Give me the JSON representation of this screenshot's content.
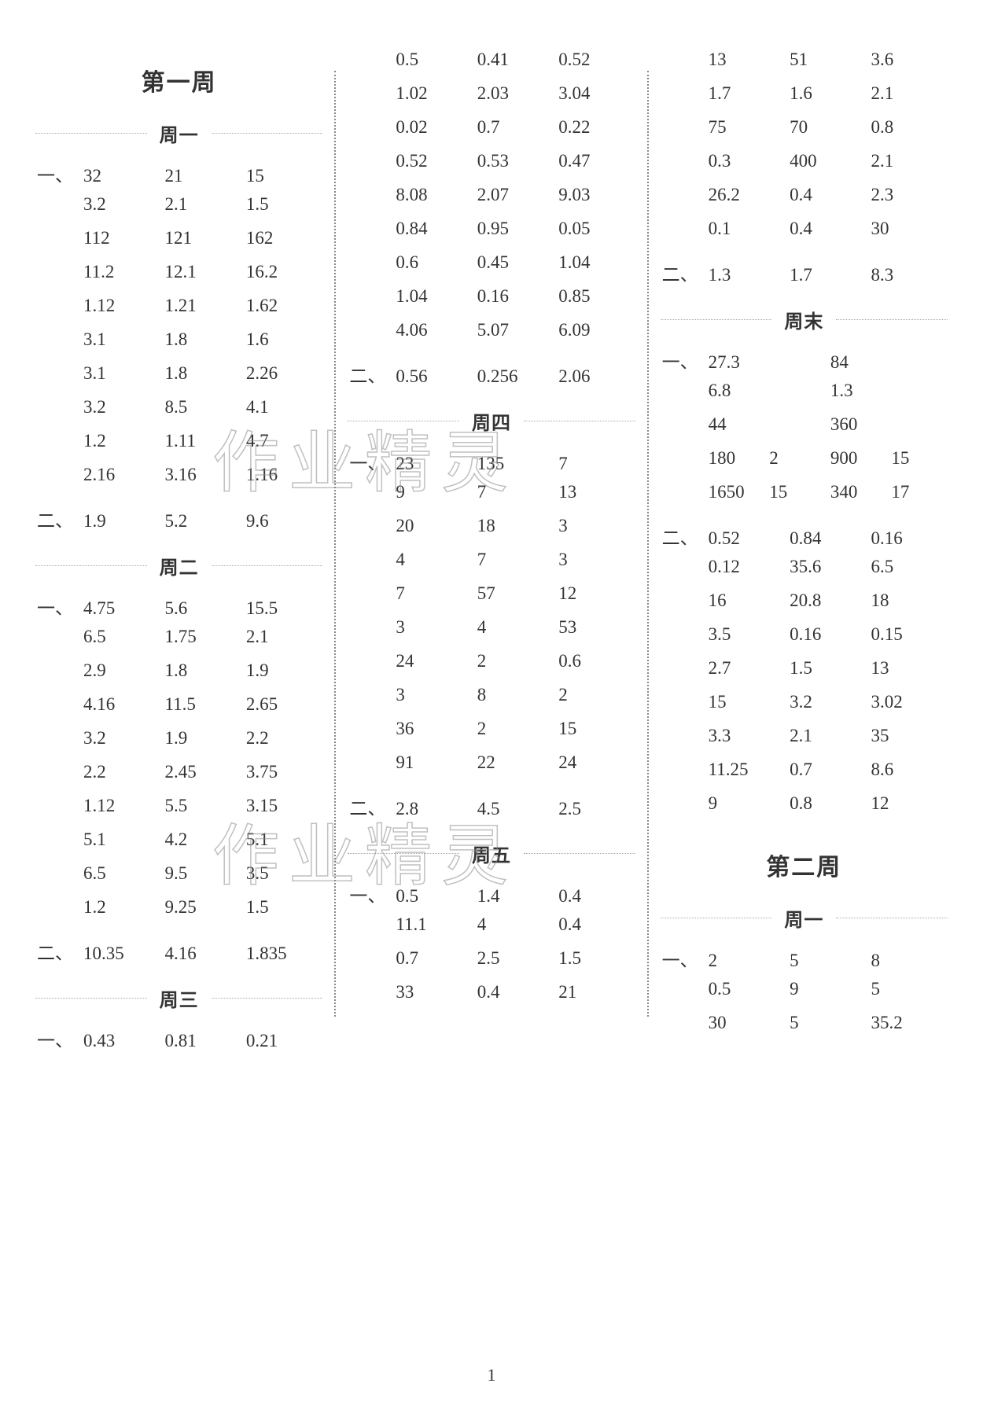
{
  "page_number": "1",
  "watermark_text": "作业精灵",
  "columns": [
    {
      "blocks": [
        {
          "type": "week",
          "text": "第一周"
        },
        {
          "type": "day",
          "text": "周一"
        },
        {
          "type": "section",
          "rows": [
            {
              "lead": "一、",
              "cells": [
                "32",
                "21",
                "15"
              ]
            },
            {
              "lead": "",
              "cells": [
                "3.2",
                "2.1",
                "1.5"
              ]
            },
            {
              "lead": "",
              "cells": [
                "112",
                "121",
                "162"
              ]
            },
            {
              "lead": "",
              "cells": [
                "11.2",
                "12.1",
                "16.2"
              ]
            },
            {
              "lead": "",
              "cells": [
                "1.12",
                "1.21",
                "1.62"
              ]
            },
            {
              "lead": "",
              "cells": [
                "3.1",
                "1.8",
                "1.6"
              ]
            },
            {
              "lead": "",
              "cells": [
                "3.1",
                "1.8",
                "2.26"
              ]
            },
            {
              "lead": "",
              "cells": [
                "3.2",
                "8.5",
                "4.1"
              ]
            },
            {
              "lead": "",
              "cells": [
                "1.2",
                "1.11",
                "4.7"
              ]
            },
            {
              "lead": "",
              "cells": [
                "2.16",
                "3.16",
                "1.16"
              ]
            }
          ]
        },
        {
          "type": "section",
          "rows": [
            {
              "lead": "二、",
              "cells": [
                "1.9",
                "5.2",
                "9.6"
              ]
            }
          ]
        },
        {
          "type": "day",
          "text": "周二"
        },
        {
          "type": "section",
          "rows": [
            {
              "lead": "一、",
              "cells": [
                "4.75",
                "5.6",
                "15.5"
              ]
            },
            {
              "lead": "",
              "cells": [
                "6.5",
                "1.75",
                "2.1"
              ]
            },
            {
              "lead": "",
              "cells": [
                "2.9",
                "1.8",
                "1.9"
              ]
            },
            {
              "lead": "",
              "cells": [
                "4.16",
                "11.5",
                "2.65"
              ]
            },
            {
              "lead": "",
              "cells": [
                "3.2",
                "1.9",
                "2.2"
              ]
            },
            {
              "lead": "",
              "cells": [
                "2.2",
                "2.45",
                "3.75"
              ]
            },
            {
              "lead": "",
              "cells": [
                "1.12",
                "5.5",
                "3.15"
              ]
            },
            {
              "lead": "",
              "cells": [
                "5.1",
                "4.2",
                "5.1"
              ]
            },
            {
              "lead": "",
              "cells": [
                "6.5",
                "9.5",
                "3.5"
              ]
            },
            {
              "lead": "",
              "cells": [
                "1.2",
                "9.25",
                "1.5"
              ]
            }
          ]
        },
        {
          "type": "section",
          "rows": [
            {
              "lead": "二、",
              "cells": [
                "10.35",
                "4.16",
                "1.835"
              ]
            }
          ]
        },
        {
          "type": "day",
          "text": "周三"
        },
        {
          "type": "section",
          "rows": [
            {
              "lead": "一、",
              "cells": [
                "0.43",
                "0.81",
                "0.21"
              ]
            }
          ]
        }
      ]
    },
    {
      "blocks": [
        {
          "type": "section",
          "rows": [
            {
              "lead": "",
              "cells": [
                "0.5",
                "0.41",
                "0.52"
              ]
            },
            {
              "lead": "",
              "cells": [
                "1.02",
                "2.03",
                "3.04"
              ]
            },
            {
              "lead": "",
              "cells": [
                "0.02",
                "0.7",
                "0.22"
              ]
            },
            {
              "lead": "",
              "cells": [
                "0.52",
                "0.53",
                "0.47"
              ]
            },
            {
              "lead": "",
              "cells": [
                "8.08",
                "2.07",
                "9.03"
              ]
            },
            {
              "lead": "",
              "cells": [
                "0.84",
                "0.95",
                "0.05"
              ]
            },
            {
              "lead": "",
              "cells": [
                "0.6",
                "0.45",
                "1.04"
              ]
            },
            {
              "lead": "",
              "cells": [
                "1.04",
                "0.16",
                "0.85"
              ]
            },
            {
              "lead": "",
              "cells": [
                "4.06",
                "5.07",
                "6.09"
              ]
            }
          ]
        },
        {
          "type": "section",
          "rows": [
            {
              "lead": "二、",
              "cells": [
                "0.56",
                "0.256",
                "2.06"
              ]
            }
          ]
        },
        {
          "type": "day",
          "text": "周四"
        },
        {
          "type": "section",
          "rows": [
            {
              "lead": "一、",
              "cells": [
                "23",
                "135",
                "7"
              ]
            },
            {
              "lead": "",
              "cells": [
                "9",
                "7",
                "13"
              ]
            },
            {
              "lead": "",
              "cells": [
                "20",
                "18",
                "3"
              ]
            },
            {
              "lead": "",
              "cells": [
                "4",
                "7",
                "3"
              ]
            },
            {
              "lead": "",
              "cells": [
                "7",
                "57",
                "12"
              ]
            },
            {
              "lead": "",
              "cells": [
                "3",
                "4",
                "53"
              ]
            },
            {
              "lead": "",
              "cells": [
                "24",
                "2",
                "0.6"
              ]
            },
            {
              "lead": "",
              "cells": [
                "3",
                "8",
                "2"
              ]
            },
            {
              "lead": "",
              "cells": [
                "36",
                "2",
                "15"
              ]
            },
            {
              "lead": "",
              "cells": [
                "91",
                "22",
                "24"
              ]
            }
          ]
        },
        {
          "type": "section",
          "rows": [
            {
              "lead": "二、",
              "cells": [
                "2.8",
                "4.5",
                "2.5"
              ]
            }
          ]
        },
        {
          "type": "day",
          "text": "周五"
        },
        {
          "type": "section",
          "rows": [
            {
              "lead": "一、",
              "cells": [
                "0.5",
                "1.4",
                "0.4"
              ]
            },
            {
              "lead": "",
              "cells": [
                "11.1",
                "4",
                "0.4"
              ]
            },
            {
              "lead": "",
              "cells": [
                "0.7",
                "2.5",
                "1.5"
              ]
            },
            {
              "lead": "",
              "cells": [
                "33",
                "0.4",
                "21"
              ]
            }
          ]
        }
      ]
    },
    {
      "blocks": [
        {
          "type": "section",
          "rows": [
            {
              "lead": "",
              "cells": [
                "13",
                "51",
                "3.6"
              ]
            },
            {
              "lead": "",
              "cells": [
                "1.7",
                "1.6",
                "2.1"
              ]
            },
            {
              "lead": "",
              "cells": [
                "75",
                "70",
                "0.8"
              ]
            },
            {
              "lead": "",
              "cells": [
                "0.3",
                "400",
                "2.1"
              ]
            },
            {
              "lead": "",
              "cells": [
                "26.2",
                "0.4",
                "2.3"
              ]
            },
            {
              "lead": "",
              "cells": [
                "0.1",
                "0.4",
                "30"
              ]
            }
          ]
        },
        {
          "type": "section",
          "rows": [
            {
              "lead": "二、",
              "cells": [
                "1.3",
                "1.7",
                "8.3"
              ]
            }
          ]
        },
        {
          "type": "day",
          "text": "周末"
        },
        {
          "type": "section",
          "rows": [
            {
              "lead": "一、",
              "cells": [
                "27.3",
                "84",
                ""
              ],
              "cols": 2
            },
            {
              "lead": "",
              "cells": [
                "6.8",
                "1.3",
                ""
              ],
              "cols": 2
            },
            {
              "lead": "",
              "cells": [
                "44",
                "360",
                ""
              ],
              "cols": 2
            },
            {
              "lead": "",
              "cells": [
                "180",
                "2",
                "900",
                "15"
              ],
              "cols": 4
            },
            {
              "lead": "",
              "cells": [
                "1650",
                "15",
                "340",
                "17"
              ],
              "cols": 4
            }
          ]
        },
        {
          "type": "section",
          "rows": [
            {
              "lead": "二、",
              "cells": [
                "0.52",
                "0.84",
                "0.16"
              ]
            },
            {
              "lead": "",
              "cells": [
                "0.12",
                "35.6",
                "6.5"
              ]
            },
            {
              "lead": "",
              "cells": [
                "16",
                "20.8",
                "18"
              ]
            },
            {
              "lead": "",
              "cells": [
                "3.5",
                "0.16",
                "0.15"
              ]
            },
            {
              "lead": "",
              "cells": [
                "2.7",
                "1.5",
                "13"
              ]
            },
            {
              "lead": "",
              "cells": [
                "15",
                "3.2",
                "3.02"
              ]
            },
            {
              "lead": "",
              "cells": [
                "3.3",
                "2.1",
                "35"
              ]
            },
            {
              "lead": "",
              "cells": [
                "11.25",
                "0.7",
                "8.6"
              ]
            },
            {
              "lead": "",
              "cells": [
                "9",
                "0.8",
                "12"
              ]
            }
          ]
        },
        {
          "type": "week",
          "text": "第二周"
        },
        {
          "type": "day",
          "text": "周一"
        },
        {
          "type": "section",
          "rows": [
            {
              "lead": "一、",
              "cells": [
                "2",
                "5",
                "8"
              ]
            },
            {
              "lead": "",
              "cells": [
                "0.5",
                "9",
                "5"
              ]
            },
            {
              "lead": "",
              "cells": [
                "30",
                "5",
                "35.2"
              ]
            }
          ]
        }
      ]
    }
  ]
}
